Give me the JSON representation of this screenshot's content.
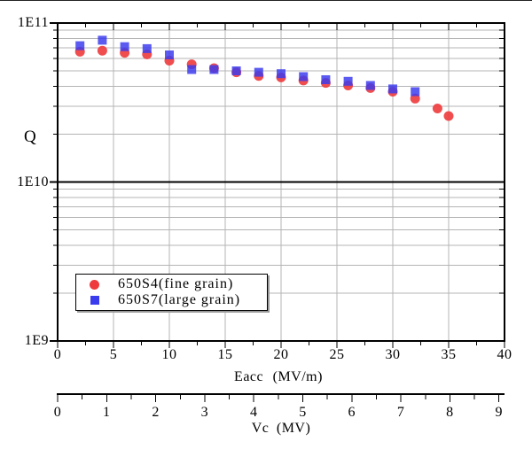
{
  "chart_data": {
    "type": "scatter",
    "ylabel": "Q",
    "xlabel": "Eacc (MV/m)",
    "x2label": "Vc (MV)",
    "yaxis": {
      "scale": "log",
      "min": 1000000000.0,
      "max": 100000000000.0,
      "tick_labels": [
        "1E11",
        "1E10",
        "1E9"
      ],
      "tick_values": [
        100000000000.0,
        10000000000.0,
        1000000000.0
      ]
    },
    "xaxis": {
      "min": 0,
      "max": 40,
      "major_step": 5,
      "minor_step": 2.5,
      "tick_labels": [
        "0",
        "5",
        "10",
        "15",
        "20",
        "25",
        "30",
        "35",
        "40"
      ],
      "tick_values": [
        0,
        5,
        10,
        15,
        20,
        25,
        30,
        35,
        40
      ]
    },
    "x2axis": {
      "min": 0,
      "major_step": 1,
      "minor_step": 0.5,
      "tick_labels": [
        "0",
        "1",
        "2",
        "3",
        "4",
        "5",
        "6",
        "7",
        "8",
        "9"
      ],
      "tick_values": [
        0,
        1,
        2,
        3,
        4,
        5,
        6,
        7,
        8,
        9
      ]
    },
    "grid": true,
    "legend_position": "lower-left",
    "series": [
      {
        "name": "650S4(fine grain)",
        "marker": "circle",
        "color": "#ee3a3c",
        "x": [
          2,
          4,
          6,
          8,
          10,
          12,
          14,
          16,
          18,
          20,
          22,
          24,
          26,
          28,
          30,
          32,
          34,
          35
        ],
        "y": [
          66000000000.0,
          67000000000.0,
          65000000000.0,
          63500000000.0,
          58000000000.0,
          55000000000.0,
          52000000000.0,
          49000000000.0,
          46500000000.0,
          45500000000.0,
          43500000000.0,
          42000000000.0,
          40500000000.0,
          39000000000.0,
          37000000000.0,
          33500000000.0,
          29000000000.0,
          26000000000.0
        ]
      },
      {
        "name": "650S7(large grain)",
        "marker": "square",
        "color": "#3b3bee",
        "x": [
          2,
          4,
          6,
          8,
          10,
          12,
          14,
          16,
          18,
          20,
          22,
          24,
          26,
          28,
          30,
          32
        ],
        "y": [
          72000000000.0,
          78000000000.0,
          71000000000.0,
          69000000000.0,
          63000000000.0,
          51000000000.0,
          51000000000.0,
          50000000000.0,
          49000000000.0,
          48000000000.0,
          46000000000.0,
          44000000000.0,
          43000000000.0,
          40500000000.0,
          38500000000.0,
          37000000000.0
        ]
      }
    ]
  },
  "colors": {
    "grid": "#b4b4b4",
    "axis": "#000000",
    "decade_line": "#000000"
  }
}
